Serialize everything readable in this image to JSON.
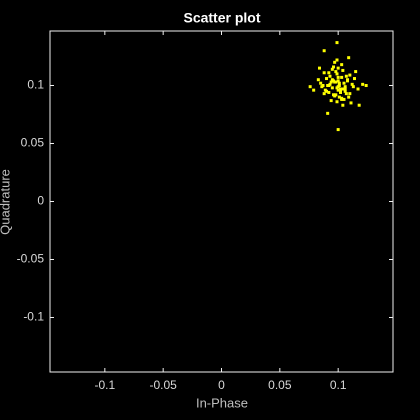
{
  "chart_data": {
    "type": "scatter",
    "title": "Scatter plot",
    "xlabel": "In-Phase",
    "ylabel": "Quadrature",
    "color": "#ffff00",
    "xlim": [
      -0.147,
      0.147
    ],
    "ylim": [
      -0.147,
      0.147
    ],
    "xticks": [
      -0.1,
      -0.05,
      0,
      0.05,
      0.1
    ],
    "yticks": [
      -0.1,
      -0.05,
      0,
      0.05,
      0.1
    ],
    "x": [
      0.101,
      0.095,
      0.108,
      0.092,
      0.099,
      0.104,
      0.112,
      0.087,
      0.097,
      0.103,
      0.106,
      0.094,
      0.1,
      0.09,
      0.109,
      0.098,
      0.102,
      0.096,
      0.113,
      0.085,
      0.105,
      0.093,
      0.1,
      0.107,
      0.091,
      0.099,
      0.103,
      0.117,
      0.083,
      0.096,
      0.101,
      0.11,
      0.089,
      0.104,
      0.098,
      0.095,
      0.106,
      0.102,
      0.094,
      0.1,
      0.121,
      0.079,
      0.097,
      0.108,
      0.092,
      0.103,
      0.099,
      0.105,
      0.088,
      0.111,
      0.096,
      0.1,
      0.102,
      0.093,
      0.107,
      0.098,
      0.104,
      0.09,
      0.114,
      0.086,
      0.101,
      0.097,
      0.1,
      0.088,
      0.099,
      0.103,
      0.095,
      0.11,
      0.092,
      0.106,
      0.099,
      0.1,
      0.088,
      0.118,
      0.076,
      0.124,
      0.091,
      0.109,
      0.084,
      0.115
    ],
    "y": [
      0.102,
      0.098,
      0.105,
      0.094,
      0.11,
      0.097,
      0.101,
      0.1,
      0.091,
      0.107,
      0.095,
      0.103,
      0.099,
      0.106,
      0.09,
      0.112,
      0.096,
      0.104,
      0.099,
      0.102,
      0.088,
      0.108,
      0.115,
      0.093,
      0.1,
      0.086,
      0.118,
      0.097,
      0.105,
      0.092,
      0.1,
      0.109,
      0.096,
      0.083,
      0.103,
      0.114,
      0.099,
      0.094,
      0.087,
      0.107,
      0.101,
      0.096,
      0.12,
      0.104,
      0.111,
      0.089,
      0.098,
      0.102,
      0.093,
      0.085,
      0.116,
      0.104,
      0.097,
      0.101,
      0.108,
      0.092,
      0.113,
      0.095,
      0.106,
      0.099,
      0.09,
      0.103,
      0.096,
      0.111,
      0.122,
      0.088,
      0.105,
      0.093,
      0.1,
      0.097,
      0.137,
      0.062,
      0.13,
      0.083,
      0.099,
      0.1,
      0.076,
      0.124,
      0.115,
      0.112
    ]
  }
}
